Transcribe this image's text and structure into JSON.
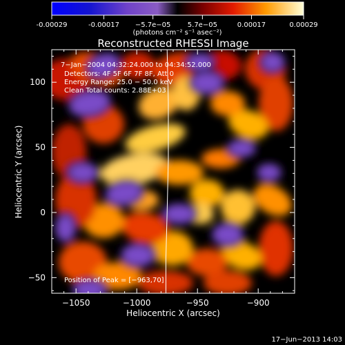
{
  "chart_data": {
    "type": "heatmap",
    "title": "Reconstructed RHESSI Image",
    "xlabel": "Heliocentric X (arcsec)",
    "ylabel": "Heliocentric Y (arcsec)",
    "xlim": [
      -1070,
      -870
    ],
    "ylim": [
      -62,
      125
    ],
    "xticks": [
      -1050,
      -1000,
      -950,
      -900
    ],
    "xtick_labels": [
      "−1050",
      "−1000",
      "−950",
      "−900"
    ],
    "yticks": [
      -50,
      0,
      50,
      100
    ],
    "ytick_labels": [
      "−50",
      "0",
      "50",
      "100"
    ],
    "colorbar": {
      "range": [
        -0.00029,
        0.00029
      ],
      "ticks": [
        -0.00029,
        -0.00017,
        -5.7e-05,
        5.7e-05,
        0.00017,
        0.00029
      ],
      "tick_labels": [
        "-0.00029",
        "-0.00017",
        "−5.7e−05",
        "5.7e−05",
        "0.00017",
        "0.00029"
      ],
      "units": "(photons cm⁻² s⁻¹ asec⁻²)"
    },
    "annotations": [
      "7−Jan−2004 04:32:24.000 to 04:34:52.000",
      "Detectors: 4F 5F 6F 7F 8F, Att 0",
      "Energy Range: 25.0 − 50.0 keV",
      "Clean     Total counts: 2.88E+03"
    ],
    "peak_label": "Position of Peak = [−963,70]",
    "peak": [
      -963,
      70
    ],
    "limb_x": [
      -975,
      -974,
      -974,
      -975,
      -976,
      -976
    ],
    "limb_y": [
      125,
      85,
      40,
      0,
      -35,
      -62
    ],
    "footer_date": "17−Jun−2013 14:03"
  }
}
